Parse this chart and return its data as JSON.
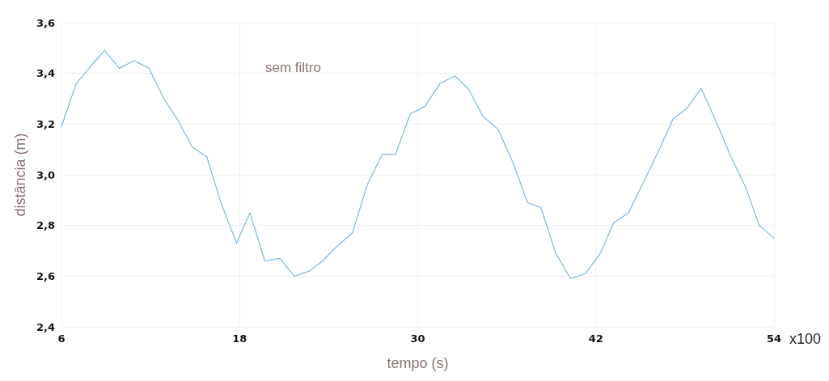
{
  "chart_data": {
    "type": "line",
    "title": "sem filtro",
    "xlabel": "tempo (s)",
    "ylabel": "distância (m)",
    "annotations": [
      "x100"
    ],
    "x": [
      6.0,
      7.0,
      8.0,
      8.9,
      9.9,
      10.9,
      11.9,
      12.9,
      13.8,
      14.8,
      15.8,
      16.8,
      17.8,
      18.7,
      19.7,
      20.7,
      21.7,
      22.7,
      23.6,
      24.6,
      25.6,
      26.6,
      27.6,
      28.5,
      29.5,
      30.5,
      31.5,
      32.5,
      33.4,
      34.4,
      35.4,
      36.4,
      37.4,
      38.3,
      39.3,
      40.3,
      41.3,
      42.3,
      43.2,
      44.2,
      45.2,
      46.2,
      47.2,
      48.1,
      49.1,
      50.1,
      51.1,
      52.1,
      53.0,
      54.0
    ],
    "series": [
      {
        "color": "#7ab8dc",
        "values": [
          3.19,
          3.36,
          3.43,
          3.49,
          3.42,
          3.45,
          3.42,
          3.3,
          3.22,
          3.11,
          3.07,
          2.88,
          2.73,
          2.85,
          2.66,
          2.67,
          2.6,
          2.62,
          2.66,
          2.72,
          2.77,
          2.96,
          3.08,
          3.08,
          3.24,
          3.27,
          3.36,
          3.39,
          3.34,
          3.23,
          3.18,
          3.05,
          2.89,
          2.87,
          2.69,
          2.59,
          2.61,
          2.69,
          2.81,
          2.85,
          2.97,
          3.09,
          3.22,
          3.26,
          3.34,
          3.21,
          3.07,
          2.95,
          2.8,
          2.75
        ]
      }
    ],
    "xlim": [
      6,
      54
    ],
    "xticks": [
      6,
      18,
      30,
      42,
      54
    ],
    "ylim": [
      2.4,
      3.6
    ],
    "yticks": [
      {
        "value": 2.4,
        "label": "2,4"
      },
      {
        "value": 2.6,
        "label": "2,6"
      },
      {
        "value": 2.8,
        "label": "2,8"
      },
      {
        "value": 3.0,
        "label": "3,0"
      },
      {
        "value": 3.2,
        "label": "3,2"
      },
      {
        "value": 3.4,
        "label": "3,4"
      },
      {
        "value": 3.6,
        "label": "3,6"
      }
    ],
    "grid": true,
    "marker": "none",
    "line_style": "solid"
  }
}
